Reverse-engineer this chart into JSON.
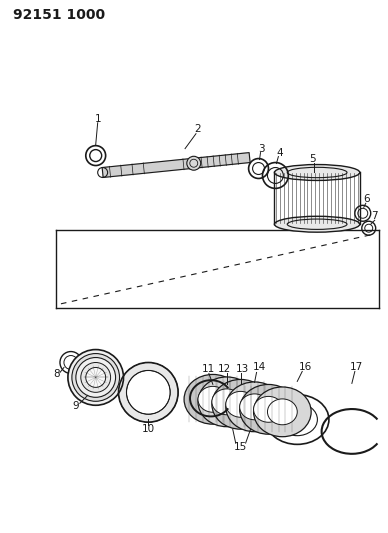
{
  "title": "92151 1000",
  "bg_color": "#ffffff",
  "line_color": "#1a1a1a",
  "fig_width": 3.88,
  "fig_height": 5.33,
  "dpi": 100
}
